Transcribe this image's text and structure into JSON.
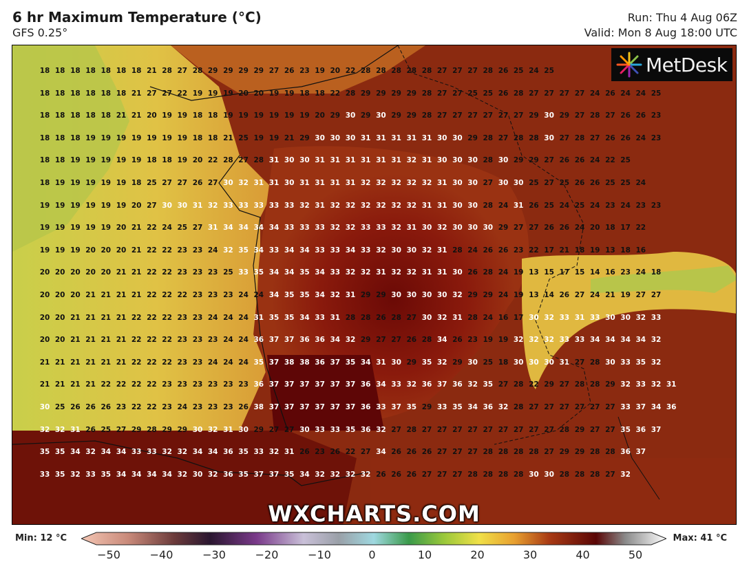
{
  "header": {
    "title": "6 hr Maximum Temperature (°C)",
    "model": "GFS 0.25°",
    "run": "Run: Thu 4 Aug 06Z",
    "valid": "Valid: Mon 8 Aug 18:00 UTC"
  },
  "logo": {
    "name": "MetDesk",
    "icon": "metdesk-burst-icon"
  },
  "watermark": "WXCHARTS.COM",
  "colorbar": {
    "min_label": "Min: 12 °C",
    "max_label": "Max: 41 °C",
    "ticks": [
      "−50",
      "−40",
      "−30",
      "−20",
      "−10",
      "0",
      "10",
      "20",
      "30",
      "40",
      "50"
    ],
    "range": [
      -50,
      50
    ]
  },
  "map_data": {
    "region": "France and surroundings",
    "grid_rows": [
      [
        18,
        18,
        18,
        18,
        18,
        18,
        18,
        21,
        28,
        27,
        28,
        29,
        29,
        29,
        29,
        27,
        26,
        23,
        19,
        20,
        22,
        28,
        28,
        28,
        28,
        28,
        27,
        27,
        27,
        28,
        26,
        25,
        24,
        25
      ],
      [
        18,
        18,
        18,
        18,
        18,
        18,
        21,
        27,
        27,
        22,
        19,
        19,
        19,
        20,
        20,
        19,
        19,
        18,
        18,
        22,
        28,
        29,
        29,
        29,
        29,
        28,
        27,
        27,
        25,
        25,
        26,
        28,
        27,
        27,
        27,
        27,
        24,
        26,
        24,
        24,
        25
      ],
      [
        18,
        18,
        18,
        18,
        18,
        21,
        21,
        20,
        19,
        19,
        18,
        18,
        19,
        19,
        19,
        19,
        19,
        19,
        20,
        29,
        30,
        29,
        30,
        29,
        29,
        28,
        27,
        27,
        27,
        27,
        27,
        27,
        29,
        30,
        29,
        27,
        28,
        27,
        26,
        26,
        23
      ],
      [
        18,
        18,
        18,
        19,
        19,
        19,
        19,
        19,
        19,
        19,
        18,
        18,
        21,
        25,
        19,
        19,
        21,
        29,
        30,
        30,
        30,
        31,
        31,
        31,
        31,
        31,
        30,
        30,
        29,
        28,
        27,
        28,
        28,
        30,
        27,
        28,
        27,
        26,
        26,
        24,
        23
      ],
      [
        18,
        18,
        19,
        19,
        19,
        19,
        19,
        18,
        18,
        19,
        20,
        22,
        28,
        27,
        28,
        31,
        30,
        30,
        31,
        31,
        31,
        31,
        31,
        31,
        32,
        31,
        30,
        30,
        30,
        28,
        30,
        29,
        29,
        27,
        26,
        26,
        24,
        22,
        25
      ],
      [
        18,
        19,
        19,
        19,
        19,
        19,
        18,
        25,
        27,
        27,
        26,
        27,
        30,
        32,
        31,
        31,
        30,
        31,
        31,
        31,
        31,
        32,
        32,
        32,
        32,
        32,
        31,
        30,
        30,
        27,
        30,
        30,
        25,
        27,
        25,
        26,
        26,
        25,
        25,
        24
      ],
      [
        19,
        19,
        19,
        19,
        19,
        19,
        20,
        27,
        30,
        30,
        31,
        32,
        33,
        33,
        33,
        33,
        33,
        32,
        31,
        32,
        32,
        32,
        32,
        32,
        32,
        31,
        31,
        30,
        30,
        28,
        24,
        31,
        26,
        25,
        24,
        25,
        24,
        23,
        24,
        23,
        23
      ],
      [
        19,
        19,
        19,
        19,
        19,
        20,
        21,
        22,
        24,
        25,
        27,
        31,
        34,
        34,
        34,
        34,
        33,
        33,
        33,
        32,
        32,
        33,
        33,
        32,
        31,
        30,
        32,
        30,
        30,
        30,
        29,
        27,
        27,
        26,
        26,
        24,
        20,
        18,
        17,
        22
      ],
      [
        19,
        19,
        19,
        20,
        20,
        20,
        21,
        22,
        22,
        23,
        23,
        24,
        32,
        35,
        34,
        33,
        34,
        34,
        33,
        33,
        34,
        33,
        32,
        30,
        30,
        32,
        31,
        28,
        24,
        26,
        26,
        23,
        22,
        17,
        21,
        18,
        19,
        13,
        18,
        16
      ],
      [
        20,
        20,
        20,
        20,
        20,
        21,
        21,
        22,
        22,
        23,
        23,
        23,
        25,
        33,
        35,
        34,
        34,
        35,
        34,
        33,
        32,
        32,
        31,
        32,
        32,
        31,
        31,
        30,
        26,
        28,
        24,
        19,
        13,
        15,
        17,
        15,
        14,
        16,
        23,
        24,
        18
      ],
      [
        20,
        20,
        20,
        21,
        21,
        21,
        21,
        22,
        22,
        22,
        23,
        23,
        23,
        24,
        24,
        34,
        35,
        35,
        34,
        32,
        31,
        29,
        29,
        30,
        30,
        30,
        30,
        32,
        29,
        29,
        24,
        19,
        13,
        14,
        26,
        27,
        24,
        21,
        19,
        27,
        27
      ],
      [
        20,
        20,
        21,
        21,
        21,
        21,
        22,
        22,
        22,
        23,
        23,
        24,
        24,
        24,
        31,
        35,
        35,
        34,
        33,
        31,
        28,
        28,
        26,
        28,
        27,
        30,
        32,
        31,
        28,
        24,
        16,
        17,
        30,
        32,
        33,
        31,
        33,
        30,
        30,
        32,
        33
      ],
      [
        20,
        20,
        21,
        21,
        21,
        21,
        22,
        22,
        22,
        23,
        23,
        23,
        24,
        24,
        36,
        37,
        37,
        36,
        36,
        34,
        32,
        29,
        27,
        27,
        26,
        28,
        34,
        26,
        23,
        19,
        19,
        32,
        32,
        32,
        33,
        33,
        34,
        34,
        34,
        34,
        32
      ],
      [
        21,
        21,
        21,
        21,
        21,
        21,
        22,
        22,
        22,
        23,
        23,
        24,
        24,
        24,
        35,
        37,
        38,
        38,
        36,
        37,
        35,
        34,
        31,
        30,
        29,
        35,
        32,
        29,
        30,
        25,
        18,
        30,
        30,
        30,
        31,
        27,
        28,
        30,
        33,
        35,
        32
      ],
      [
        21,
        21,
        21,
        21,
        22,
        22,
        22,
        22,
        23,
        23,
        23,
        23,
        23,
        23,
        36,
        37,
        37,
        37,
        37,
        37,
        37,
        36,
        34,
        33,
        32,
        36,
        37,
        36,
        32,
        35,
        27,
        28,
        22,
        29,
        27,
        28,
        28,
        29,
        32,
        33,
        32,
        31
      ],
      [
        30,
        25,
        26,
        26,
        26,
        23,
        22,
        22,
        23,
        24,
        23,
        23,
        23,
        26,
        38,
        37,
        37,
        37,
        37,
        37,
        37,
        36,
        33,
        37,
        35,
        29,
        33,
        35,
        34,
        36,
        32,
        28,
        27,
        27,
        27,
        27,
        27,
        27,
        33,
        37,
        34,
        36
      ],
      [
        32,
        32,
        31,
        26,
        25,
        27,
        29,
        28,
        29,
        29,
        30,
        32,
        31,
        30,
        29,
        27,
        27,
        30,
        33,
        33,
        35,
        36,
        32,
        27,
        28,
        27,
        27,
        27,
        27,
        27,
        27,
        27,
        27,
        27,
        28,
        29,
        27,
        27,
        35,
        36,
        37
      ],
      [
        35,
        35,
        34,
        32,
        34,
        34,
        33,
        33,
        32,
        32,
        34,
        34,
        36,
        35,
        33,
        32,
        31,
        26,
        23,
        26,
        22,
        27,
        34,
        26,
        26,
        26,
        27,
        27,
        27,
        28,
        28,
        28,
        28,
        27,
        29,
        29,
        28,
        28,
        36,
        37
      ],
      [
        33,
        35,
        32,
        33,
        35,
        34,
        34,
        34,
        34,
        32,
        30,
        32,
        36,
        35,
        37,
        37,
        35,
        34,
        32,
        32,
        32,
        32,
        26,
        26,
        26,
        27,
        27,
        27,
        28,
        28,
        28,
        28,
        30,
        30,
        28,
        28,
        28,
        27,
        32
      ]
    ]
  }
}
